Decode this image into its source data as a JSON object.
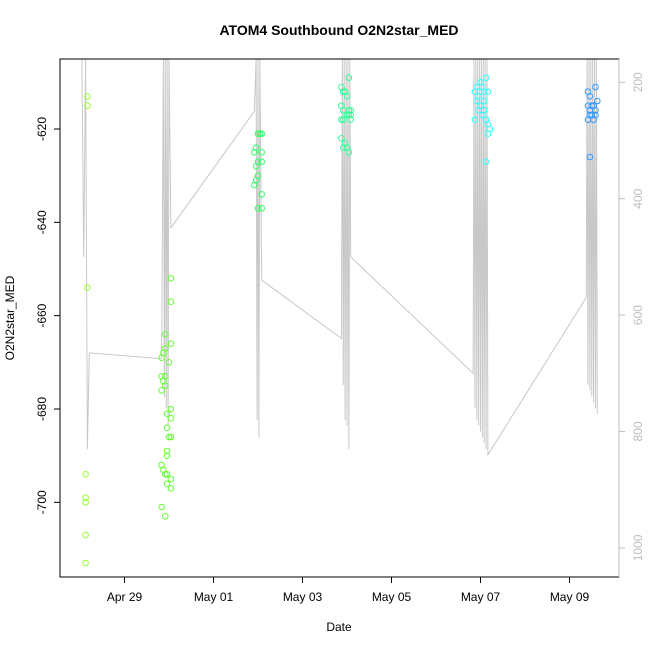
{
  "chart_data": {
    "type": "scatter",
    "title": "ATOM4 Southbound O2N2star_MED",
    "xlabel": "Date",
    "ylabel": "O2N2star_MED",
    "x_ticks": [
      "Apr 29",
      "May 01",
      "May 03",
      "May 05",
      "May 07",
      "May 09"
    ],
    "y_ticks": [
      "-620",
      "-640",
      "-660",
      "-680",
      "-700"
    ],
    "y2_ticks": [
      "200",
      "400",
      "600",
      "800",
      "1000"
    ],
    "ylim": [
      -716,
      -605
    ],
    "y2_lim": [
      1050,
      160
    ],
    "y2_axis_color": "#bdbdbd",
    "grid": false,
    "series": [
      {
        "color": "#99ff33",
        "points": [
          [
            "2017-04-28T04:00",
            -613
          ],
          [
            "2017-04-28T04:00",
            -615
          ],
          [
            "2017-04-28T04:00",
            -654
          ],
          [
            "2017-04-28T03:00",
            -694
          ],
          [
            "2017-04-28T03:00",
            -699
          ],
          [
            "2017-04-28T03:00",
            -700
          ],
          [
            "2017-04-28T03:00",
            -707
          ],
          [
            "2017-04-28T03:00",
            -713
          ]
        ]
      },
      {
        "color": "#66ff33",
        "points": [
          [
            "2017-04-29T20:00",
            -669
          ],
          [
            "2017-04-29T21:00",
            -668
          ],
          [
            "2017-04-29T22:00",
            -667
          ],
          [
            "2017-04-29T22:00",
            -664
          ],
          [
            "2017-04-29T20:00",
            -673
          ],
          [
            "2017-04-29T21:00",
            -674
          ],
          [
            "2017-04-29T22:00",
            -673
          ],
          [
            "2017-04-29T20:00",
            -676
          ],
          [
            "2017-04-29T22:00",
            -675
          ],
          [
            "2017-04-29T20:00",
            -692
          ],
          [
            "2017-04-29T21:00",
            -693
          ],
          [
            "2017-04-29T22:00",
            -694
          ],
          [
            "2017-04-29T23:00",
            -694
          ],
          [
            "2017-04-29T20:00",
            -701
          ],
          [
            "2017-04-29T22:00",
            -703
          ],
          [
            "2017-04-29T23:00",
            -681
          ],
          [
            "2017-04-29T23:00",
            -684
          ],
          [
            "2017-04-29T23:00",
            -689
          ],
          [
            "2017-04-29T23:00",
            -690
          ],
          [
            "2017-04-29T23:00",
            -696
          ],
          [
            "2017-04-30T00:00",
            -670
          ],
          [
            "2017-04-30T01:00",
            -652
          ],
          [
            "2017-04-30T01:00",
            -657
          ],
          [
            "2017-04-30T01:00",
            -666
          ],
          [
            "2017-04-30T01:00",
            -680
          ],
          [
            "2017-04-30T01:00",
            -682
          ],
          [
            "2017-04-30T01:00",
            -686
          ],
          [
            "2017-04-30T00:00",
            -686
          ],
          [
            "2017-04-30T01:00",
            -695
          ],
          [
            "2017-04-30T01:00",
            -697
          ]
        ]
      },
      {
        "color": "#33ff66",
        "points": [
          [
            "2017-05-01T22:00",
            -625
          ],
          [
            "2017-05-01T23:00",
            -624
          ],
          [
            "2017-05-02T00:00",
            -621
          ],
          [
            "2017-05-02T01:00",
            -621
          ],
          [
            "2017-05-02T02:00",
            -621
          ],
          [
            "2017-05-01T23:00",
            -628
          ],
          [
            "2017-05-02T00:00",
            -627
          ],
          [
            "2017-05-02T02:00",
            -627
          ],
          [
            "2017-05-01T23:00",
            -631
          ],
          [
            "2017-05-01T22:00",
            -632
          ],
          [
            "2017-05-02T00:00",
            -630
          ],
          [
            "2017-05-02T02:00",
            -634
          ],
          [
            "2017-05-02T00:00",
            -637
          ],
          [
            "2017-05-02T02:00",
            -637
          ],
          [
            "2017-05-02T02:00",
            -625
          ]
        ]
      },
      {
        "color": "#33ff99",
        "points": [
          [
            "2017-05-03T21:00",
            -611
          ],
          [
            "2017-05-03T22:00",
            -612
          ],
          [
            "2017-05-03T23:00",
            -612
          ],
          [
            "2017-05-04T00:00",
            -613
          ],
          [
            "2017-05-04T01:00",
            -609
          ],
          [
            "2017-05-03T21:00",
            -615
          ],
          [
            "2017-05-03T22:00",
            -616
          ],
          [
            "2017-05-04T00:00",
            -617
          ],
          [
            "2017-05-04T01:00",
            -616
          ],
          [
            "2017-05-04T02:00",
            -616
          ],
          [
            "2017-05-04T02:00",
            -618
          ],
          [
            "2017-05-03T22:00",
            -618
          ],
          [
            "2017-05-03T21:00",
            -622
          ],
          [
            "2017-05-03T23:00",
            -623
          ],
          [
            "2017-05-04T00:00",
            -624
          ],
          [
            "2017-05-03T22:00",
            -624
          ],
          [
            "2017-05-04T01:00",
            -625
          ],
          [
            "2017-05-04T01:00",
            -617
          ],
          [
            "2017-05-03T21:00",
            -618
          ],
          [
            "2017-05-04T02:00",
            -617
          ]
        ]
      },
      {
        "color": "#33ffff",
        "points": [
          [
            "2017-05-06T21:00",
            -612
          ],
          [
            "2017-05-06T22:00",
            -611
          ],
          [
            "2017-05-06T23:00",
            -613
          ],
          [
            "2017-05-07T00:00",
            -610
          ],
          [
            "2017-05-07T01:00",
            -611
          ],
          [
            "2017-05-07T02:00",
            -612
          ],
          [
            "2017-05-07T03:00",
            -609
          ],
          [
            "2017-05-07T04:00",
            -612
          ],
          [
            "2017-05-06T21:00",
            -618
          ],
          [
            "2017-05-06T23:00",
            -616
          ],
          [
            "2017-05-07T00:00",
            -615
          ],
          [
            "2017-05-07T01:00",
            -617
          ],
          [
            "2017-05-07T02:00",
            -616
          ],
          [
            "2017-05-07T03:00",
            -618
          ],
          [
            "2017-05-07T04:00",
            -619
          ],
          [
            "2017-05-07T05:00",
            -620
          ],
          [
            "2017-05-07T04:00",
            -621
          ],
          [
            "2017-05-07T03:00",
            -627
          ],
          [
            "2017-05-06T22:00",
            -614
          ],
          [
            "2017-05-07T02:00",
            -614
          ]
        ]
      },
      {
        "color": "#3399ff",
        "points": [
          [
            "2017-05-09T10:00",
            -612
          ],
          [
            "2017-05-09T11:00",
            -613
          ],
          [
            "2017-05-09T14:00",
            -611
          ],
          [
            "2017-05-09T15:00",
            -614
          ],
          [
            "2017-05-09T10:00",
            -615
          ],
          [
            "2017-05-09T11:00",
            -616
          ],
          [
            "2017-05-09T12:00",
            -615
          ],
          [
            "2017-05-09T13:00",
            -615
          ],
          [
            "2017-05-09T14:00",
            -616
          ],
          [
            "2017-05-09T10:00",
            -618
          ],
          [
            "2017-05-09T11:00",
            -617
          ],
          [
            "2017-05-09T12:00",
            -617
          ],
          [
            "2017-05-09T13:00",
            -618
          ],
          [
            "2017-05-09T14:00",
            -617
          ],
          [
            "2017-05-09T11:00",
            -626
          ]
        ]
      }
    ],
    "depth_trace": {
      "color": "#c8c8c8",
      "points": [
        [
          "2017-04-28T01:00",
          160
        ],
        [
          "2017-04-28T02:00",
          500
        ],
        [
          "2017-04-28T03:00",
          160
        ],
        [
          "2017-04-28T04:00",
          830
        ],
        [
          "2017-04-28T05:00",
          665
        ],
        [
          "2017-04-29T20:00",
          675
        ],
        [
          "2017-04-29T21:00",
          160
        ],
        [
          "2017-04-29T21:30",
          740
        ],
        [
          "2017-04-29T22:00",
          160
        ],
        [
          "2017-04-29T22:30",
          760
        ],
        [
          "2017-04-29T23:00",
          160
        ],
        [
          "2017-04-29T23:30",
          790
        ],
        [
          "2017-04-30T00:00",
          160
        ],
        [
          "2017-04-30T01:00",
          450
        ],
        [
          "2017-05-01T22:00",
          250
        ],
        [
          "2017-05-01T23:00",
          160
        ],
        [
          "2017-05-01T23:30",
          780
        ],
        [
          "2017-05-02T00:00",
          160
        ],
        [
          "2017-05-02T00:30",
          810
        ],
        [
          "2017-05-02T01:00",
          160
        ],
        [
          "2017-05-02T02:00",
          540
        ],
        [
          "2017-05-03T21:00",
          640
        ],
        [
          "2017-05-03T21:30",
          160
        ],
        [
          "2017-05-03T22:00",
          720
        ],
        [
          "2017-05-03T22:30",
          160
        ],
        [
          "2017-05-03T23:00",
          780
        ],
        [
          "2017-05-03T23:30",
          160
        ],
        [
          "2017-05-04T00:00",
          790
        ],
        [
          "2017-05-04T00:30",
          160
        ],
        [
          "2017-05-04T01:00",
          830
        ],
        [
          "2017-05-04T01:30",
          160
        ],
        [
          "2017-05-04T02:00",
          500
        ],
        [
          "2017-05-06T20:00",
          700
        ],
        [
          "2017-05-06T20:30",
          160
        ],
        [
          "2017-05-06T21:00",
          760
        ],
        [
          "2017-05-06T21:30",
          160
        ],
        [
          "2017-05-06T22:00",
          780
        ],
        [
          "2017-05-06T22:30",
          160
        ],
        [
          "2017-05-06T23:00",
          790
        ],
        [
          "2017-05-06T23:30",
          160
        ],
        [
          "2017-05-07T00:00",
          800
        ],
        [
          "2017-05-07T00:30",
          160
        ],
        [
          "2017-05-07T01:00",
          810
        ],
        [
          "2017-05-07T01:30",
          160
        ],
        [
          "2017-05-07T02:00",
          820
        ],
        [
          "2017-05-07T02:30",
          160
        ],
        [
          "2017-05-07T03:00",
          830
        ],
        [
          "2017-05-07T03:30",
          160
        ],
        [
          "2017-05-07T04:00",
          840
        ],
        [
          "2017-05-09T09:00",
          570
        ],
        [
          "2017-05-09T09:30",
          160
        ],
        [
          "2017-05-09T10:00",
          720
        ],
        [
          "2017-05-09T10:30",
          160
        ],
        [
          "2017-05-09T11:00",
          730
        ],
        [
          "2017-05-09T11:30",
          160
        ],
        [
          "2017-05-09T12:00",
          740
        ],
        [
          "2017-05-09T12:30",
          160
        ],
        [
          "2017-05-09T13:00",
          750
        ],
        [
          "2017-05-09T13:30",
          160
        ],
        [
          "2017-05-09T14:00",
          760
        ],
        [
          "2017-05-09T14:30",
          160
        ],
        [
          "2017-05-09T15:00",
          770
        ]
      ]
    }
  }
}
